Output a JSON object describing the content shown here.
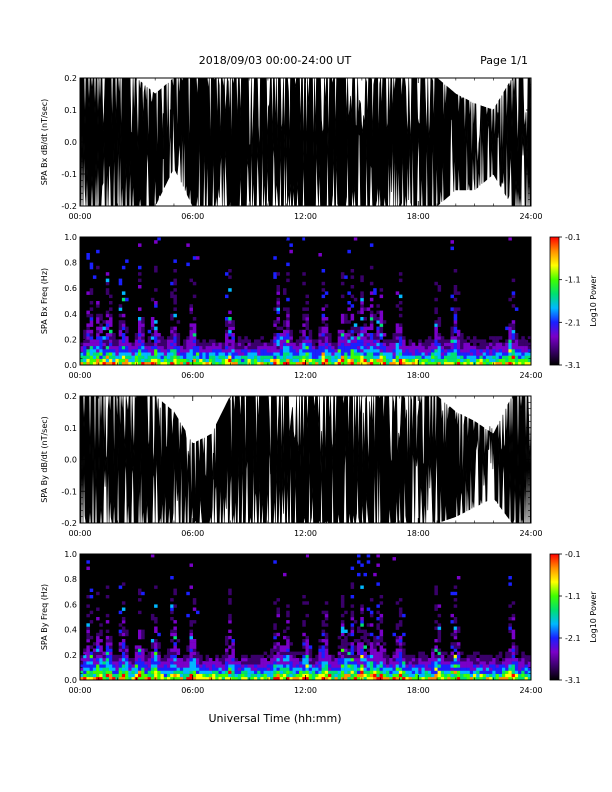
{
  "header": {
    "title": "2018/09/03  00:00-24:00 UT",
    "page": "Page 1/1"
  },
  "footer": {
    "xlabel": "Universal Time (hh:mm)"
  },
  "colors": {
    "background": "#ffffff",
    "plot_fill": "#000000",
    "axis": "#000000",
    "colorbar": [
      "#000000",
      "#3a006a",
      "#7a00c8",
      "#1a20ff",
      "#00b8ff",
      "#00e070",
      "#40ff00",
      "#ffff00",
      "#ff9000",
      "#ff0000"
    ]
  },
  "chart_data": [
    {
      "type": "area",
      "id": "bx-dbdt",
      "description_label": "SPA Bx dB/dt (nT/sec)",
      "ylabel": "SPA Bx dB/dt (nT/sec)",
      "xlim": [
        "00:00",
        "24:00"
      ],
      "ylim": [
        -0.2,
        0.2
      ],
      "xticks": [
        "00:00",
        "06:00",
        "12:00",
        "18:00",
        "24:00"
      ],
      "yticks": [
        "-0.2",
        "-0.1",
        "0.0",
        "0.1",
        "0.2"
      ],
      "ytick_values": [
        -0.2,
        -0.1,
        0.0,
        0.1,
        0.2
      ],
      "series": [
        {
          "x_hours": [
            0,
            1,
            2,
            3,
            4,
            5,
            6,
            7,
            8,
            9,
            10,
            11,
            12,
            13,
            14,
            15,
            16,
            17,
            18,
            19,
            20,
            21,
            22,
            23,
            24
          ],
          "upper": [
            0.2,
            0.2,
            0.2,
            0.2,
            0.15,
            0.2,
            0.2,
            0.2,
            0.2,
            0.2,
            0.2,
            0.2,
            0.2,
            0.2,
            0.2,
            0.2,
            0.2,
            0.2,
            0.2,
            0.2,
            0.15,
            0.12,
            0.1,
            0.2,
            0.2
          ],
          "lower": [
            -0.2,
            -0.2,
            -0.2,
            -0.2,
            -0.2,
            -0.08,
            -0.2,
            -0.2,
            -0.2,
            -0.2,
            -0.2,
            -0.2,
            -0.2,
            -0.2,
            -0.2,
            -0.2,
            -0.2,
            -0.2,
            -0.2,
            -0.2,
            -0.15,
            -0.15,
            -0.1,
            -0.2,
            -0.2
          ]
        }
      ]
    },
    {
      "type": "heatmap",
      "id": "bx-spec",
      "ylabel": "SPA Bx Freq (Hz)",
      "xlim": [
        "00:00",
        "24:00"
      ],
      "ylim": [
        0.0,
        1.0
      ],
      "xticks": [
        "00:00",
        "06:00",
        "12:00",
        "18:00",
        "24:00"
      ],
      "yticks": [
        "0.0",
        "0.2",
        "0.4",
        "0.6",
        "0.8",
        "1.0"
      ],
      "ytick_values": [
        0.0,
        0.2,
        0.4,
        0.6,
        0.8,
        1.0
      ],
      "colorbar": {
        "label": "Log10 Power",
        "ticks": [
          "-0.1",
          "-1.1",
          "-2.1",
          "-3.1"
        ],
        "tick_values": [
          -0.1,
          -1.1,
          -2.1,
          -3.1
        ],
        "range": [
          -3.1,
          -0.1
        ]
      },
      "activity_hours": [
        0.5,
        1.0,
        1.5,
        2.3,
        3.2,
        4.0,
        5.0,
        6.0,
        8.0,
        10.5,
        11.0,
        12.0,
        13.0,
        14.0,
        14.5,
        15.0,
        15.5,
        16.0,
        17.0,
        19.0,
        20.0,
        23.0
      ]
    },
    {
      "type": "area",
      "id": "by-dbdt",
      "ylabel": "SPA By dB/dt (nT/sec)",
      "xlim": [
        "00:00",
        "24:00"
      ],
      "ylim": [
        -0.2,
        0.2
      ],
      "xticks": [
        "00:00",
        "06:00",
        "12:00",
        "18:00",
        "24:00"
      ],
      "yticks": [
        "-0.2",
        "-0.1",
        "0.0",
        "0.1",
        "0.2"
      ],
      "ytick_values": [
        -0.2,
        -0.1,
        0.0,
        0.1,
        0.2
      ],
      "series": [
        {
          "x_hours": [
            0,
            1,
            2,
            3,
            4,
            5,
            6,
            7,
            8,
            9,
            10,
            11,
            12,
            13,
            14,
            15,
            16,
            17,
            18,
            19,
            20,
            21,
            22,
            23,
            24
          ],
          "upper": [
            0.2,
            0.2,
            0.2,
            0.2,
            0.2,
            0.15,
            0.05,
            0.08,
            0.2,
            0.2,
            0.2,
            0.2,
            0.2,
            0.2,
            0.2,
            0.2,
            0.2,
            0.2,
            0.2,
            0.2,
            0.15,
            0.12,
            0.08,
            0.2,
            0.2
          ],
          "lower": [
            -0.2,
            -0.2,
            -0.2,
            -0.2,
            -0.2,
            -0.2,
            -0.2,
            -0.2,
            -0.2,
            -0.2,
            -0.2,
            -0.2,
            -0.2,
            -0.2,
            -0.2,
            -0.2,
            -0.2,
            -0.2,
            -0.2,
            -0.2,
            -0.18,
            -0.15,
            -0.12,
            -0.2,
            -0.2
          ]
        }
      ]
    },
    {
      "type": "heatmap",
      "id": "by-spec",
      "ylabel": "SPA By Freq (Hz)",
      "xlim": [
        "00:00",
        "24:00"
      ],
      "ylim": [
        0.0,
        1.0
      ],
      "xticks": [
        "00:00",
        "06:00",
        "12:00",
        "18:00",
        "24:00"
      ],
      "yticks": [
        "0.0",
        "0.2",
        "0.4",
        "0.6",
        "0.8",
        "1.0"
      ],
      "ytick_values": [
        0.0,
        0.2,
        0.4,
        0.6,
        0.8,
        1.0
      ],
      "colorbar": {
        "label": "Log10 Power",
        "ticks": [
          "-0.1",
          "-1.1",
          "-2.1",
          "-3.1"
        ],
        "tick_values": [
          -0.1,
          -1.1,
          -2.1,
          -3.1
        ],
        "range": [
          -3.1,
          -0.1
        ]
      },
      "activity_hours": [
        0.5,
        1.0,
        1.5,
        2.3,
        3.2,
        4.0,
        5.0,
        6.0,
        8.0,
        10.5,
        11.0,
        12.0,
        13.0,
        14.0,
        14.5,
        15.0,
        15.5,
        16.0,
        17.0,
        19.0,
        20.0,
        23.0
      ]
    }
  ]
}
